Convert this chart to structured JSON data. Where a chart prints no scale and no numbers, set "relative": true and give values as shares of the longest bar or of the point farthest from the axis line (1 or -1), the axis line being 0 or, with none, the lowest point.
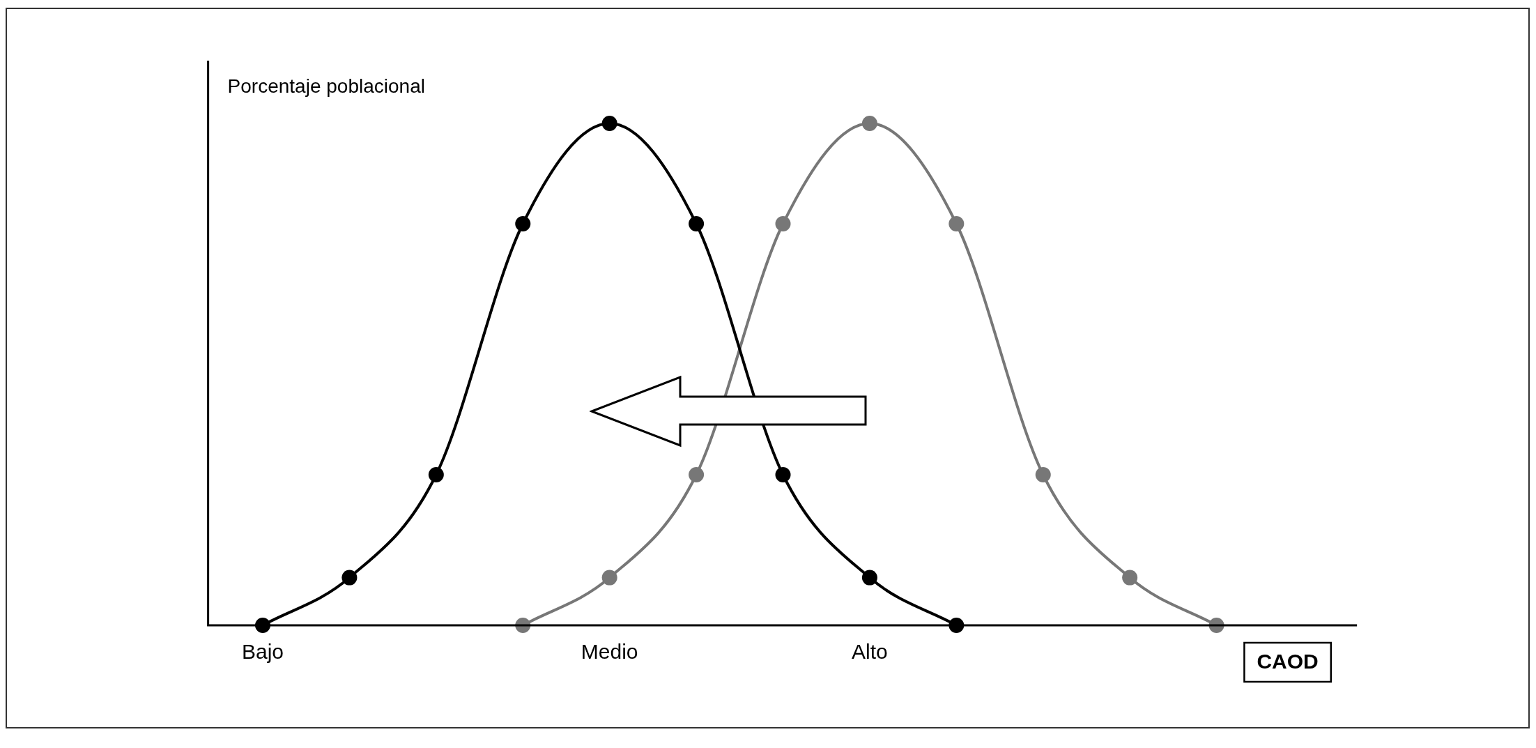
{
  "chart_data": {
    "type": "line",
    "relative": true,
    "xlabel": "CAOD",
    "ylabel": "Porcentaje poblacional",
    "categories": [
      "Bajo",
      null,
      null,
      null,
      "Medio",
      null,
      null,
      "Alto",
      null,
      null,
      null,
      null,
      null
    ],
    "series": [
      {
        "color": "#000000",
        "values": [
          0,
          0.095,
          0.3,
          0.8,
          1,
          0.8,
          0.3,
          0.095,
          0,
          null,
          null,
          null,
          null
        ]
      },
      {
        "color": "#777777",
        "values": [
          null,
          null,
          null,
          0,
          0.095,
          0.3,
          0.8,
          1,
          0.8,
          0.3,
          0.095,
          0,
          null
        ]
      }
    ],
    "marker": "circle",
    "line_style": "solid",
    "legend": false,
    "grid": false,
    "tick_labels": "x"
  }
}
